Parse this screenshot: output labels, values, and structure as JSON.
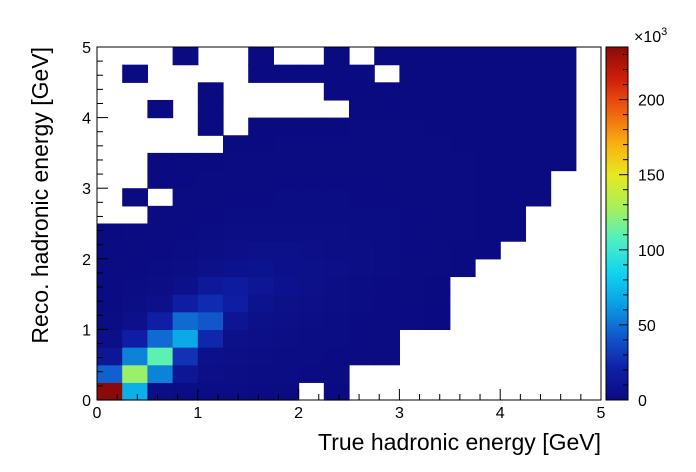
{
  "chart_data": {
    "type": "heatmap",
    "title": "",
    "xlabel": "True hadronic energy [GeV]",
    "ylabel": "Reco. hadronic energy [GeV]",
    "xlim": [
      0,
      5
    ],
    "ylim": [
      0,
      5
    ],
    "x_ticks": [
      "0",
      "1",
      "2",
      "3",
      "4",
      "5"
    ],
    "y_ticks": [
      "0",
      "1",
      "2",
      "3",
      "4",
      "5"
    ],
    "bins_x": 20,
    "bins_y": 20,
    "bin_width": 0.25,
    "colorbar": {
      "min": 0,
      "max": 235,
      "multiplier_label": "×10",
      "multiplier_exponent": "3",
      "ticks": [
        "0",
        "50",
        "100",
        "150",
        "200"
      ],
      "tick_values": [
        0,
        50,
        100,
        150,
        200
      ],
      "palette": [
        "#0b0b80",
        "#0f20a8",
        "#1159cc",
        "#0aa0e4",
        "#12d6f0",
        "#4ff0c0",
        "#a8f05a",
        "#e8e820",
        "#f8b010",
        "#f06010",
        "#d01e0a",
        "#8a0a0a"
      ]
    },
    "cells_note": "values in thousands; rows listed from y=0 upward, columns from x=0 rightward; null = empty bin",
    "cells": [
      [
        235,
        70,
        3,
        2,
        2,
        2,
        1.5,
        1,
        null,
        0.5,
        null,
        null,
        null,
        null,
        null,
        null,
        null,
        null,
        null,
        null
      ],
      [
        45,
        125,
        55,
        12,
        4,
        3,
        2,
        2,
        1.5,
        1,
        null,
        null,
        null,
        null,
        null,
        null,
        null,
        null,
        null,
        null
      ],
      [
        12,
        55,
        110,
        28,
        6,
        4,
        3,
        2,
        2,
        1.5,
        1,
        1,
        null,
        null,
        null,
        null,
        null,
        null,
        null,
        null
      ],
      [
        4,
        18,
        48,
        68,
        24,
        5,
        4,
        3,
        2,
        2,
        1.5,
        1,
        null,
        null,
        null,
        null,
        null,
        null,
        null,
        null
      ],
      [
        2,
        6,
        20,
        48,
        42,
        10,
        5,
        4,
        3,
        2,
        1.5,
        1,
        1,
        0.5,
        null,
        null,
        null,
        null,
        null,
        null
      ],
      [
        1.5,
        3,
        6,
        18,
        26,
        18,
        8,
        5,
        4,
        3,
        2,
        1.5,
        1,
        0.5,
        null,
        null,
        null,
        null,
        null,
        null
      ],
      [
        1,
        2,
        3,
        6,
        14,
        16,
        12,
        7,
        5,
        3,
        2,
        1.5,
        1,
        0.5,
        null,
        null,
        null,
        null,
        null,
        null
      ],
      [
        1,
        1.5,
        2,
        3,
        5,
        7,
        8,
        6,
        5,
        4,
        3,
        2,
        1,
        1,
        0.5,
        null,
        null,
        null,
        null,
        null
      ],
      [
        1,
        1,
        1.5,
        2,
        3,
        4,
        5,
        5,
        4,
        3,
        3,
        2,
        1.5,
        1,
        0.5,
        0.5,
        null,
        null,
        null,
        null
      ],
      [
        0.5,
        1,
        1,
        1.5,
        2,
        3,
        3,
        3,
        3,
        3,
        2,
        2,
        1.5,
        1,
        1,
        0.5,
        0.5,
        null,
        null,
        null
      ],
      [
        null,
        null,
        1,
        1,
        1.5,
        2,
        2,
        2,
        2,
        2,
        2,
        2,
        1.5,
        1,
        1,
        0.5,
        0.5,
        null,
        null,
        null
      ],
      [
        null,
        0.5,
        null,
        1,
        1,
        1.5,
        1.5,
        2,
        2,
        2,
        1.5,
        1.5,
        1,
        1,
        1,
        0.5,
        0.5,
        0.5,
        null,
        null
      ],
      [
        null,
        null,
        0.5,
        0.5,
        1,
        1,
        1,
        1.5,
        1.5,
        1.5,
        1.5,
        1,
        1,
        1,
        1,
        0.5,
        0.5,
        0.5,
        null,
        null
      ],
      [
        null,
        null,
        0.5,
        0.5,
        0.5,
        1,
        1,
        1,
        1,
        1,
        1,
        1,
        1,
        1,
        1,
        0.5,
        0.5,
        0.5,
        0.5,
        null
      ],
      [
        null,
        null,
        null,
        null,
        null,
        0.5,
        0.5,
        1,
        1,
        1,
        1,
        1,
        1,
        1,
        0.5,
        0.5,
        0.5,
        0.5,
        0.5,
        null
      ],
      [
        null,
        null,
        null,
        null,
        0.5,
        null,
        0.5,
        0.5,
        0.5,
        0.5,
        1,
        1,
        1,
        0.5,
        0.5,
        0.5,
        0.5,
        0.5,
        0.5,
        null
      ],
      [
        null,
        null,
        0.5,
        null,
        0.5,
        null,
        null,
        null,
        null,
        null,
        0.5,
        0.5,
        0.5,
        0.5,
        0.5,
        0.5,
        0.5,
        0.5,
        0.5,
        null
      ],
      [
        null,
        null,
        null,
        null,
        0.5,
        null,
        null,
        null,
        null,
        0.5,
        0.5,
        0.5,
        0.5,
        0.5,
        0.5,
        0.5,
        0.5,
        0.5,
        0.5,
        null
      ],
      [
        null,
        0.5,
        null,
        null,
        null,
        null,
        0.5,
        0.5,
        0.5,
        0.5,
        0.5,
        null,
        0.5,
        0.5,
        0.5,
        0.5,
        0.5,
        0.5,
        0.5,
        null
      ],
      [
        null,
        null,
        null,
        0.5,
        null,
        null,
        0.5,
        null,
        null,
        0.5,
        null,
        0.5,
        0.5,
        0.5,
        0.5,
        0.5,
        0.5,
        0.5,
        0.5,
        null
      ]
    ]
  }
}
